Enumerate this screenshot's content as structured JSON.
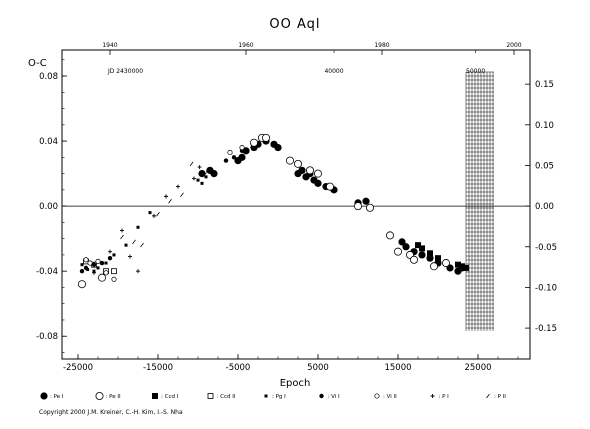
{
  "chart_data": {
    "type": "scatter",
    "title": "OO Aql",
    "ylabel": "O-C",
    "xlabel": "Epoch",
    "xlim": [
      -27000,
      31500
    ],
    "ylim": [
      -0.094,
      0.096
    ],
    "right_ylim": [
      -0.188,
      0.192
    ],
    "top_axis_label": "JD 2430000",
    "x_ticks": [
      "-25000",
      "-15000",
      "-5000",
      "5000",
      "15000",
      "25000"
    ],
    "y_ticks": [
      "0.08",
      "0.04",
      "0.00",
      "-0.04",
      "-0.08"
    ],
    "y_tick_values": [
      0.08,
      0.04,
      0.0,
      -0.04,
      -0.08
    ],
    "right_y_ticks": [
      "0.15",
      "0.10",
      "0.05",
      "0.00",
      "-0.05",
      "-0.10",
      "-0.15"
    ],
    "right_y_tick_values": [
      0.15,
      0.1,
      0.05,
      0.0,
      -0.05,
      -0.1,
      -0.15
    ],
    "top_year_ticks": [
      {
        "label": "1940",
        "epoch": -21000
      },
      {
        "label": "1960",
        "epoch": -4000
      },
      {
        "label": "1980",
        "epoch": 13000
      },
      {
        "label": "2000",
        "epoch": 29500
      }
    ],
    "top_jd_ticks": [
      {
        "label": "40000",
        "epoch": 7000
      },
      {
        "label": "50000",
        "epoch": 24700
      }
    ],
    "zero_line": true,
    "hatched_region_x": [
      23500,
      27000
    ],
    "series": [
      {
        "name": "Pe I",
        "marker": "filled-circle",
        "points": [
          [
            -9500,
            0.02
          ],
          [
            -8500,
            0.022
          ],
          [
            -8000,
            0.02
          ],
          [
            -5000,
            0.028
          ],
          [
            -4500,
            0.03
          ],
          [
            -4000,
            0.034
          ],
          [
            -3000,
            0.036
          ],
          [
            -2500,
            0.038
          ],
          [
            -1500,
            0.04
          ],
          [
            -500,
            0.038
          ],
          [
            0,
            0.036
          ],
          [
            2500,
            0.02
          ],
          [
            3000,
            0.022
          ],
          [
            3500,
            0.018
          ],
          [
            4000,
            0.02
          ],
          [
            4500,
            0.016
          ],
          [
            5000,
            0.014
          ],
          [
            6000,
            0.012
          ],
          [
            7000,
            0.01
          ],
          [
            10000,
            0.002
          ],
          [
            11000,
            0.003
          ],
          [
            15500,
            -0.022
          ],
          [
            16000,
            -0.025
          ],
          [
            17000,
            -0.028
          ],
          [
            18000,
            -0.03
          ],
          [
            19000,
            -0.032
          ],
          [
            20000,
            -0.035
          ],
          [
            21500,
            -0.038
          ],
          [
            22500,
            -0.04
          ],
          [
            23000,
            -0.038
          ]
        ]
      },
      {
        "name": "Pe II",
        "marker": "open-circle",
        "points": [
          [
            -24500,
            -0.048
          ],
          [
            -22000,
            -0.044
          ],
          [
            -3000,
            0.039
          ],
          [
            -2000,
            0.042
          ],
          [
            -1500,
            0.042
          ],
          [
            1500,
            0.028
          ],
          [
            2500,
            0.026
          ],
          [
            4000,
            0.022
          ],
          [
            5000,
            0.02
          ],
          [
            6500,
            0.012
          ],
          [
            10000,
            0.0
          ],
          [
            11500,
            -0.001
          ],
          [
            14000,
            -0.018
          ],
          [
            15000,
            -0.028
          ],
          [
            16500,
            -0.03
          ],
          [
            17000,
            -0.033
          ],
          [
            19500,
            -0.037
          ],
          [
            21000,
            -0.035
          ]
        ]
      },
      {
        "name": "Ccd I",
        "marker": "filled-square",
        "points": [
          [
            17500,
            -0.024
          ],
          [
            18000,
            -0.026
          ],
          [
            19000,
            -0.029
          ],
          [
            20000,
            -0.032
          ],
          [
            22500,
            -0.036
          ],
          [
            23000,
            -0.037
          ],
          [
            23500,
            -0.038
          ]
        ]
      },
      {
        "name": "Ccd II",
        "marker": "open-square",
        "points": [
          [
            -24000,
            -0.034
          ],
          [
            -23000,
            -0.036
          ],
          [
            -21500,
            -0.04
          ],
          [
            -20500,
            -0.04
          ]
        ]
      },
      {
        "name": "Pg I",
        "marker": "small-filled-square",
        "points": [
          [
            -24500,
            -0.036
          ],
          [
            -23800,
            -0.039
          ],
          [
            -23000,
            -0.04
          ],
          [
            -22500,
            -0.038
          ],
          [
            -21500,
            -0.035
          ],
          [
            -20500,
            -0.03
          ],
          [
            -19000,
            -0.024
          ],
          [
            -17500,
            -0.013
          ],
          [
            -16000,
            -0.004
          ],
          [
            -10000,
            0.016
          ],
          [
            -9500,
            0.014
          ],
          [
            -9000,
            0.018
          ]
        ]
      },
      {
        "name": "Vi I",
        "marker": "filled-circle-small",
        "points": [
          [
            -24500,
            -0.04
          ],
          [
            -24000,
            -0.038
          ],
          [
            -23000,
            -0.036
          ],
          [
            -22000,
            -0.035
          ],
          [
            -21000,
            -0.032
          ],
          [
            -6500,
            0.028
          ],
          [
            -5500,
            0.03
          ],
          [
            -4500,
            0.034
          ]
        ]
      },
      {
        "name": "Vi II",
        "marker": "open-circle-small",
        "points": [
          [
            -24000,
            -0.033
          ],
          [
            -23500,
            -0.035
          ],
          [
            -22500,
            -0.034
          ],
          [
            -21500,
            -0.041
          ],
          [
            -20500,
            -0.045
          ],
          [
            -6000,
            0.033
          ],
          [
            -4500,
            0.036
          ]
        ]
      },
      {
        "name": "P I",
        "marker": "plus",
        "points": [
          [
            -24000,
            -0.038
          ],
          [
            -23000,
            -0.041
          ],
          [
            -21000,
            -0.028
          ],
          [
            -19500,
            -0.015
          ],
          [
            -18500,
            -0.031
          ],
          [
            -17500,
            -0.04
          ],
          [
            -15500,
            -0.006
          ],
          [
            -14000,
            0.006
          ],
          [
            -12500,
            0.012
          ],
          [
            -10500,
            0.017
          ],
          [
            -9800,
            0.024
          ],
          [
            -9200,
            0.02
          ]
        ]
      },
      {
        "name": "P II",
        "marker": "slash",
        "points": [
          [
            -19500,
            -0.019
          ],
          [
            -18000,
            -0.022
          ],
          [
            -17000,
            -0.024
          ],
          [
            -15000,
            -0.005
          ],
          [
            -13500,
            0.003
          ],
          [
            -12000,
            0.007
          ],
          [
            -10800,
            0.026
          ],
          [
            -8800,
            0.022
          ]
        ]
      }
    ]
  },
  "legend": [
    {
      "marker": "filled-circle",
      "label": ": Pe I"
    },
    {
      "marker": "open-circle",
      "label": ": Pe II"
    },
    {
      "marker": "filled-square",
      "label": ": Ccd I"
    },
    {
      "marker": "open-square",
      "label": ": Ccd II"
    },
    {
      "marker": "small-filled-square",
      "label": ": Pg I"
    },
    {
      "marker": "filled-circle-small",
      "label": ": Vi I"
    },
    {
      "marker": "open-circle-small",
      "label": ": Vi II"
    },
    {
      "marker": "plus",
      "label": ": P I"
    },
    {
      "marker": "slash",
      "label": ": P II"
    }
  ],
  "copyright": "Copyright 2000 J.M. Kreiner, C.-H. Kim, I.-S. Nha"
}
